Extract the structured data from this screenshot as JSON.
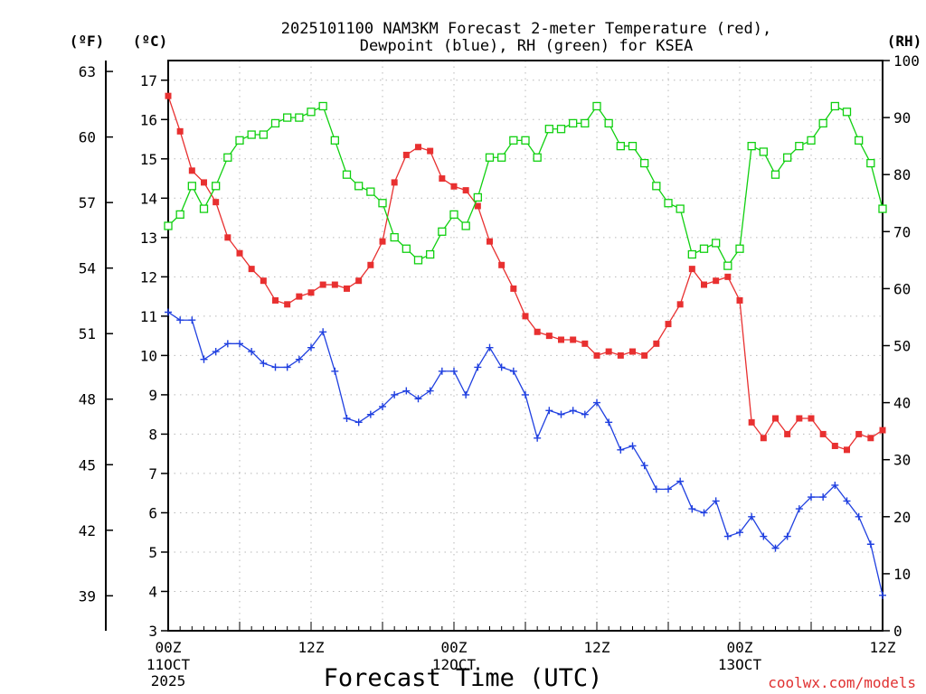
{
  "chart_data": {
    "type": "line",
    "title": "2025101100 NAM3KM Forecast 2-meter Temperature (red),",
    "subtitle": "Dewpoint (blue), RH (green) for KSEA",
    "xlabel": "Forecast Time (UTC)",
    "left_outer_unit": "(ºF)",
    "left_inner_unit": "(ºC)",
    "right_unit": "(RH)",
    "credit": "coolwx.com/models",
    "x_hours": [
      0,
      1,
      2,
      3,
      4,
      5,
      6,
      7,
      8,
      9,
      10,
      11,
      12,
      13,
      14,
      15,
      16,
      17,
      18,
      19,
      20,
      21,
      22,
      23,
      24,
      25,
      26,
      27,
      28,
      29,
      30,
      31,
      32,
      33,
      34,
      35,
      36,
      37,
      38,
      39,
      40,
      41,
      42,
      43,
      44,
      45,
      46,
      47,
      48,
      49,
      50,
      51,
      52,
      53,
      54,
      55,
      56,
      57,
      58,
      59,
      60
    ],
    "x_range": [
      0,
      60
    ],
    "celsius_range": [
      3,
      17.5
    ],
    "fahrenheit_range": [
      37.4,
      63.5
    ],
    "rh_range": [
      0,
      100
    ],
    "celsius_ticks": [
      3,
      4,
      5,
      6,
      7,
      8,
      9,
      10,
      11,
      12,
      13,
      14,
      15,
      16,
      17
    ],
    "fahrenheit_ticks": [
      39,
      42,
      45,
      48,
      51,
      54,
      57,
      60,
      63
    ],
    "rh_ticks": [
      0,
      10,
      20,
      30,
      40,
      50,
      60,
      70,
      80,
      90,
      100
    ],
    "x_ticks": [
      {
        "hour": 0,
        "label": "00Z",
        "date": "11OCT",
        "year": "2025"
      },
      {
        "hour": 12,
        "label": "12Z",
        "date": "",
        "year": ""
      },
      {
        "hour": 24,
        "label": "00Z",
        "date": "12OCT",
        "year": ""
      },
      {
        "hour": 36,
        "label": "12Z",
        "date": "",
        "year": ""
      },
      {
        "hour": 48,
        "label": "00Z",
        "date": "13OCT",
        "year": ""
      },
      {
        "hour": 60,
        "label": "12Z",
        "date": "",
        "year": ""
      }
    ],
    "series": [
      {
        "name": "2-meter Temperature",
        "unit": "C",
        "color": "#e83030",
        "marker": "filled-square",
        "values": [
          16.6,
          15.7,
          14.7,
          14.4,
          13.9,
          13.0,
          12.6,
          12.2,
          11.9,
          11.4,
          11.3,
          11.5,
          11.6,
          11.8,
          11.8,
          11.7,
          11.9,
          12.3,
          12.9,
          14.4,
          15.1,
          15.3,
          15.2,
          14.5,
          14.3,
          14.2,
          13.8,
          12.9,
          12.3,
          11.7,
          11.0,
          10.6,
          10.5,
          10.4,
          10.4,
          10.3,
          10.0,
          10.1,
          10.0,
          10.1,
          10.0,
          10.3,
          10.8,
          11.3,
          12.2,
          11.8,
          11.9,
          12.0,
          11.4,
          8.3,
          7.9,
          8.4,
          8.0,
          8.4,
          8.4,
          8.0,
          7.7,
          7.6,
          8.0,
          7.9,
          8.1
        ]
      },
      {
        "name": "Dewpoint",
        "unit": "C",
        "color": "#2040e0",
        "marker": "plus",
        "values": [
          11.1,
          10.9,
          10.9,
          9.9,
          10.1,
          10.3,
          10.3,
          10.1,
          9.8,
          9.7,
          9.7,
          9.9,
          10.2,
          10.6,
          9.6,
          8.4,
          8.3,
          8.5,
          8.7,
          9.0,
          9.1,
          8.9,
          9.1,
          9.6,
          9.6,
          9.0,
          9.7,
          10.2,
          9.7,
          9.6,
          9.0,
          7.9,
          8.6,
          8.5,
          8.6,
          8.5,
          8.8,
          8.3,
          7.6,
          7.7,
          7.2,
          6.6,
          6.6,
          6.8,
          6.1,
          6.0,
          6.3,
          5.4,
          5.5,
          5.9,
          5.4,
          5.1,
          5.4,
          6.1,
          6.4,
          6.4,
          6.7,
          6.3,
          5.9,
          5.2,
          3.9
        ]
      },
      {
        "name": "RH",
        "unit": "%",
        "color": "#10d010",
        "marker": "open-square",
        "values": [
          71,
          73,
          78,
          74,
          78,
          83,
          86,
          87,
          87,
          89,
          90,
          90,
          91,
          92,
          86,
          80,
          78,
          77,
          75,
          69,
          67,
          65,
          66,
          70,
          73,
          71,
          76,
          83,
          83,
          86,
          86,
          83,
          88,
          88,
          89,
          89,
          92,
          89,
          85,
          85,
          82,
          78,
          75,
          74,
          66,
          67,
          68,
          64,
          67,
          85,
          84,
          80,
          83,
          85,
          86,
          89,
          92,
          91,
          86,
          82,
          74
        ]
      }
    ]
  }
}
